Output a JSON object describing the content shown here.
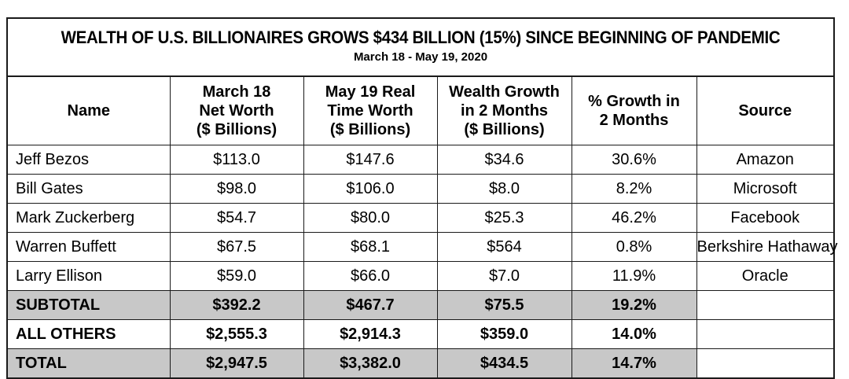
{
  "title": "WEALTH OF U.S. BILLIONAIRES GROWS $434 BILLION (15%) SINCE BEGINNING OF PANDEMIC",
  "subtitle": "March 18 - May 19, 2020",
  "headers": {
    "name": "Name",
    "march18": [
      "March 18",
      "Net Worth",
      "($ Billions)"
    ],
    "may19": [
      "May 19 Real",
      "Time Worth",
      "($ Billions)"
    ],
    "growth": [
      "Wealth Growth",
      "in 2 Months",
      "($ Billions)"
    ],
    "pct": [
      "% Growth in",
      "2 Months"
    ],
    "source": "Source"
  },
  "rows": [
    {
      "name": "Jeff Bezos",
      "march18": "$113.0",
      "may19": "$147.6",
      "growth": "$34.6",
      "pct": "30.6%",
      "source": "Amazon"
    },
    {
      "name": "Bill Gates",
      "march18": "$98.0",
      "may19": "$106.0",
      "growth": "$8.0",
      "pct": "8.2%",
      "source": "Microsoft"
    },
    {
      "name": "Mark Zuckerberg",
      "march18": "$54.7",
      "may19": "$80.0",
      "growth": "$25.3",
      "pct": "46.2%",
      "source": "Facebook"
    },
    {
      "name": "Warren Buffett",
      "march18": "$67.5",
      "may19": "$68.1",
      "growth": "$564",
      "pct": "0.8%",
      "source": "Berkshire Hathaway"
    },
    {
      "name": "Larry Ellison",
      "march18": "$59.0",
      "may19": "$66.0",
      "growth": "$7.0",
      "pct": "11.9%",
      "source": "Oracle"
    },
    {
      "name": "SUBTOTAL",
      "march18": "$392.2",
      "may19": "$467.7",
      "growth": "$75.5",
      "pct": "19.2%",
      "source": ""
    },
    {
      "name": "ALL OTHERS",
      "march18": "$2,555.3",
      "may19": "$2,914.3",
      "growth": "$359.0",
      "pct": "14.0%",
      "source": ""
    },
    {
      "name": "TOTAL",
      "march18": "$2,947.5",
      "may19": "$3,382.0",
      "growth": "$434.5",
      "pct": "14.7%",
      "source": ""
    }
  ],
  "colors": {
    "border": "#1a1a1a",
    "shade": "#c8c8c8"
  }
}
